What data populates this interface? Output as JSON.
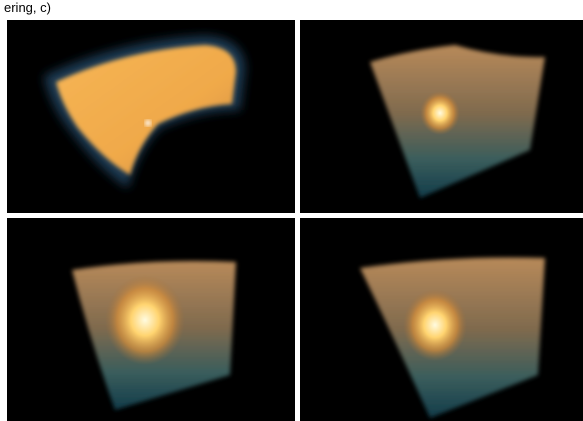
{
  "caption_fragment": "ering, c)"
}
